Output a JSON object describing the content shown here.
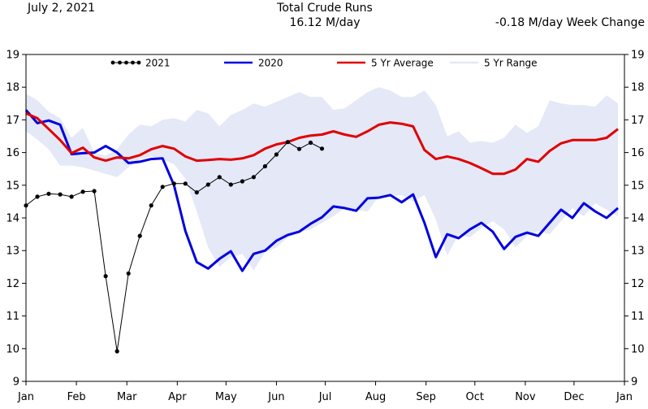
{
  "header": {
    "date": "July 2, 2021",
    "title": "Total Crude Runs",
    "current_value": "16.12 M/day",
    "week_change": "-0.18 M/day Week Change"
  },
  "chart_data": {
    "type": "line",
    "title": "Total Crude Runs",
    "xlabel": "",
    "ylabel": "",
    "units": "M/day",
    "ylim": [
      9,
      19
    ],
    "yticks": [
      9,
      10,
      11,
      12,
      13,
      14,
      15,
      16,
      17,
      18,
      19
    ],
    "xlim_week": [
      0,
      52
    ],
    "months": [
      {
        "label": "Jan",
        "week": 0
      },
      {
        "label": "Feb",
        "week": 4.43
      },
      {
        "label": "Mar",
        "week": 8.86
      },
      {
        "label": "Apr",
        "week": 13.29
      },
      {
        "label": "May",
        "week": 17.57
      },
      {
        "label": "Jun",
        "week": 22.0
      },
      {
        "label": "Jul",
        "week": 26.29
      },
      {
        "label": "Aug",
        "week": 30.71
      },
      {
        "label": "Sep",
        "week": 35.14
      },
      {
        "label": "Oct",
        "week": 39.43
      },
      {
        "label": "Nov",
        "week": 43.86
      },
      {
        "label": "Dec",
        "week": 48.14
      },
      {
        "label": "Jan",
        "week": 52.57
      }
    ],
    "legend": [
      "2021",
      "2020",
      "5 Yr Average",
      "5 Yr Range"
    ],
    "legend_placement": "top",
    "colors": {
      "2021": "#000000",
      "2020": "#0000e0",
      "avg": "#e00000",
      "range": "#e4e8f7"
    },
    "series": [
      {
        "name": "2021",
        "marker": "circle",
        "x": [
          0,
          1,
          2,
          3,
          4,
          5,
          6,
          7,
          8,
          9,
          10,
          11,
          12,
          13,
          14,
          15,
          16,
          17,
          18,
          19,
          20,
          21,
          22,
          23,
          24,
          25,
          26
        ],
        "values": [
          14.38,
          14.65,
          14.74,
          14.72,
          14.65,
          14.8,
          14.82,
          12.22,
          9.92,
          12.3,
          13.45,
          14.38,
          14.95,
          15.05,
          15.05,
          14.78,
          15.02,
          15.25,
          15.02,
          15.12,
          15.25,
          15.58,
          15.94,
          16.32,
          16.11,
          16.3,
          16.12
        ]
      },
      {
        "name": "2020",
        "x": [
          0,
          1,
          2,
          3,
          4,
          5,
          6,
          7,
          8,
          9,
          10,
          11,
          12,
          13,
          14,
          15,
          16,
          17,
          18,
          19,
          20,
          21,
          22,
          23,
          24,
          25,
          26,
          27,
          28,
          29,
          30,
          31,
          32,
          33,
          34,
          35,
          36,
          37,
          38,
          39,
          40,
          41,
          42,
          43,
          44,
          45,
          46,
          47,
          48,
          49,
          50,
          51,
          52
        ],
        "values": [
          17.3,
          16.9,
          16.98,
          16.85,
          15.95,
          15.98,
          16.0,
          16.2,
          16.0,
          15.68,
          15.72,
          15.8,
          15.82,
          15.0,
          13.6,
          12.65,
          12.45,
          12.75,
          12.98,
          12.38,
          12.9,
          13.0,
          13.3,
          13.48,
          13.58,
          13.82,
          14.02,
          14.35,
          14.3,
          14.22,
          14.6,
          14.62,
          14.7,
          14.48,
          14.72,
          13.85,
          12.8,
          13.5,
          13.38,
          13.65,
          13.85,
          13.58,
          13.05,
          13.42,
          13.55,
          13.45,
          13.85,
          14.25,
          14.0,
          14.45,
          14.2,
          14.0,
          14.3
        ]
      },
      {
        "name": "5 Yr Average",
        "x": [
          0,
          1,
          2,
          3,
          4,
          5,
          6,
          7,
          8,
          9,
          10,
          11,
          12,
          13,
          14,
          15,
          16,
          17,
          18,
          19,
          20,
          21,
          22,
          23,
          24,
          25,
          26,
          27,
          28,
          29,
          30,
          31,
          32,
          33,
          34,
          35,
          36,
          37,
          38,
          39,
          40,
          41,
          42,
          43,
          44,
          45,
          46,
          47,
          48,
          49,
          50,
          51,
          52
        ],
        "values": [
          17.2,
          17.05,
          16.72,
          16.38,
          15.98,
          16.15,
          15.85,
          15.75,
          15.85,
          15.82,
          15.92,
          16.1,
          16.2,
          16.12,
          15.88,
          15.75,
          15.77,
          15.8,
          15.78,
          15.82,
          15.92,
          16.12,
          16.25,
          16.32,
          16.45,
          16.52,
          16.55,
          16.65,
          16.55,
          16.48,
          16.65,
          16.85,
          16.92,
          16.88,
          16.8,
          16.08,
          15.8,
          15.88,
          15.8,
          15.68,
          15.52,
          15.35,
          15.35,
          15.48,
          15.8,
          15.72,
          16.05,
          16.28,
          16.38,
          16.38,
          16.38,
          16.45,
          16.72
        ]
      },
      {
        "name": "5 Yr Range",
        "x": [
          0,
          1,
          2,
          3,
          4,
          5,
          6,
          7,
          8,
          9,
          10,
          11,
          12,
          13,
          14,
          15,
          16,
          17,
          18,
          19,
          20,
          21,
          22,
          23,
          24,
          25,
          26,
          27,
          28,
          29,
          30,
          31,
          32,
          33,
          34,
          35,
          36,
          37,
          38,
          39,
          40,
          41,
          42,
          43,
          44,
          45,
          46,
          47,
          48,
          49,
          50,
          51,
          52
        ],
        "high": [
          17.8,
          17.6,
          17.25,
          17.05,
          16.45,
          16.75,
          16.0,
          15.9,
          16.1,
          16.55,
          16.85,
          16.8,
          17.0,
          17.05,
          16.95,
          17.3,
          17.2,
          16.8,
          17.15,
          17.3,
          17.5,
          17.4,
          17.55,
          17.7,
          17.85,
          17.7,
          17.7,
          17.3,
          17.35,
          17.6,
          17.85,
          18.0,
          17.9,
          17.7,
          17.7,
          17.9,
          17.45,
          16.5,
          16.65,
          16.3,
          16.35,
          16.3,
          16.45,
          16.85,
          16.6,
          16.8,
          17.6,
          17.5,
          17.45,
          17.45,
          17.4,
          17.75,
          17.5
        ],
        "low": [
          16.65,
          16.4,
          16.1,
          15.6,
          15.6,
          15.55,
          15.45,
          15.35,
          15.25,
          15.55,
          15.8,
          15.88,
          15.78,
          15.65,
          15.2,
          14.2,
          13.1,
          12.5,
          12.8,
          12.9,
          12.4,
          12.95,
          13.1,
          13.4,
          13.55,
          13.65,
          13.85,
          14.05,
          14.3,
          14.25,
          14.2,
          14.65,
          14.65,
          14.7,
          14.5,
          14.7,
          13.95,
          12.85,
          13.5,
          13.4,
          13.7,
          13.9,
          13.65,
          13.1,
          13.45,
          13.6,
          13.5,
          13.9,
          14.3,
          14.05,
          14.45,
          14.25,
          14.05
        ]
      }
    ]
  }
}
